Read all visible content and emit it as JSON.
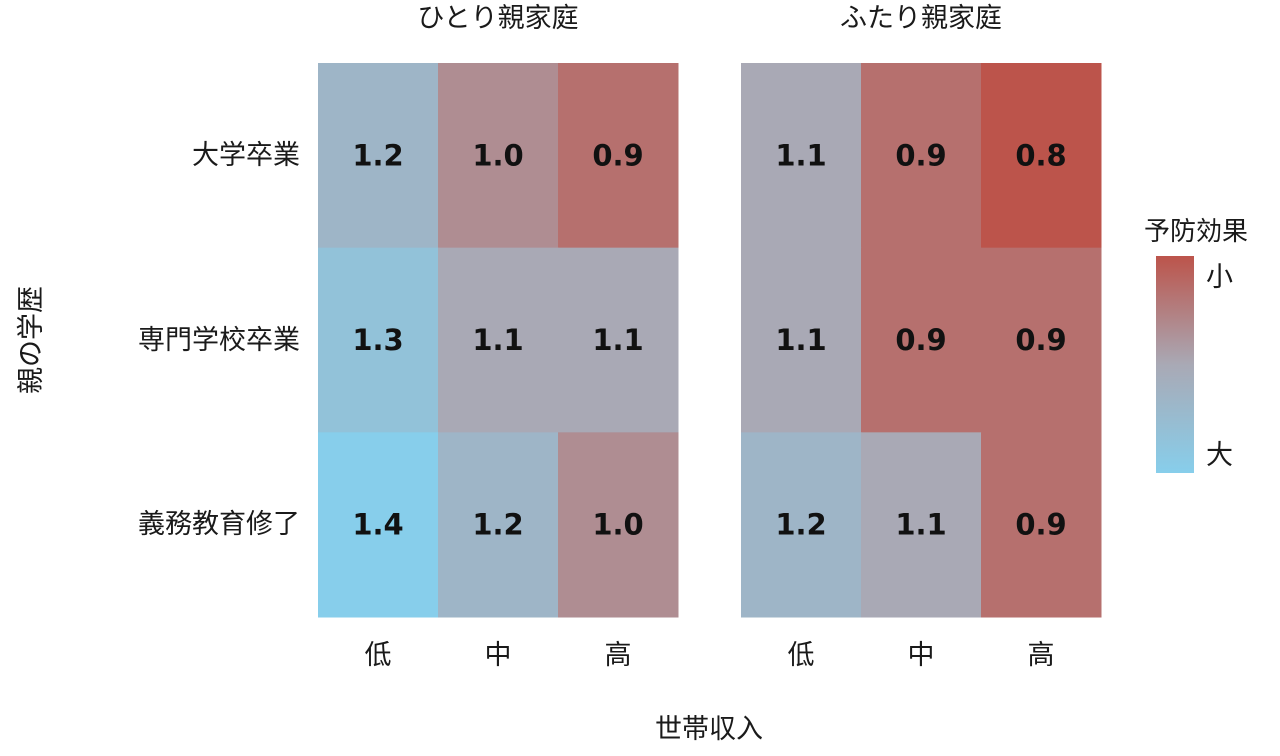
{
  "chart_data": {
    "type": "heatmap",
    "xlabel": "世帯収入",
    "ylabel": "親の学歴",
    "x_categories": [
      "低",
      "中",
      "高"
    ],
    "y_categories": [
      "大学卒業",
      "専門学校卒業",
      "義務教育修了"
    ],
    "panels": [
      {
        "title": "ひとり親家庭",
        "values": [
          [
            1.2,
            1.0,
            0.9
          ],
          [
            1.3,
            1.1,
            1.1
          ],
          [
            1.4,
            1.2,
            1.0
          ]
        ],
        "labels": [
          [
            "1.2",
            "1.0",
            "0.9"
          ],
          [
            "1.3",
            "1.1",
            "1.1"
          ],
          [
            "1.4",
            "1.2",
            "1.0"
          ]
        ]
      },
      {
        "title": "ふたり親家庭",
        "values": [
          [
            1.1,
            0.9,
            0.8
          ],
          [
            1.1,
            0.9,
            0.9
          ],
          [
            1.2,
            1.1,
            0.9
          ]
        ],
        "labels": [
          [
            "1.1",
            "0.9",
            "0.8"
          ],
          [
            "1.1",
            "0.9",
            "0.9"
          ],
          [
            "1.2",
            "1.1",
            "0.9"
          ]
        ]
      }
    ],
    "colorbar": {
      "title": "予防効果",
      "top_label": "小",
      "bottom_label": "大",
      "range": [
        0.8,
        1.4
      ],
      "colors": {
        "high_effect": "#87ceeb",
        "mid": "#a9a9b5",
        "low_effect": "#bc544b"
      }
    }
  }
}
